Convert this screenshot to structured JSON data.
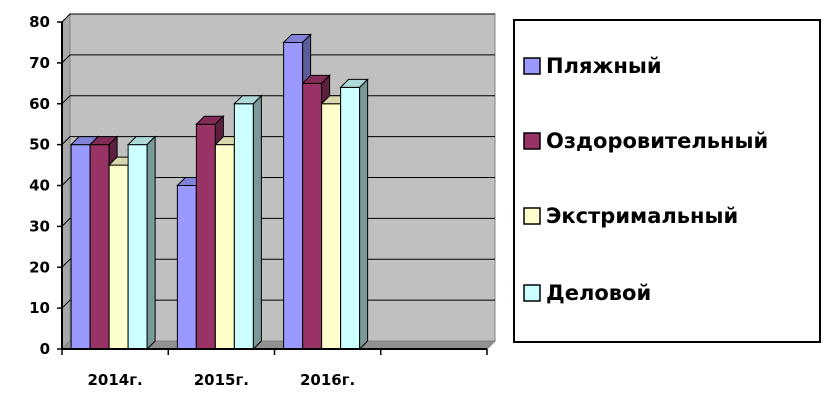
{
  "chart_data": {
    "type": "bar",
    "title": "",
    "xlabel": "",
    "ylabel": "",
    "categories": [
      "2014г.",
      "2015г.",
      "2016г.",
      ""
    ],
    "series": [
      {
        "name": "Пляжный",
        "values": [
          50,
          40,
          75,
          null
        ]
      },
      {
        "name": "Оздоровительный",
        "values": [
          50,
          55,
          65,
          null
        ]
      },
      {
        "name": "Экстримальный",
        "values": [
          45,
          50,
          60,
          null
        ]
      },
      {
        "name": "Деловой",
        "values": [
          50,
          60,
          64,
          null
        ]
      }
    ],
    "ylim": [
      0,
      80
    ],
    "y_ticks": [
      "0",
      "10",
      "20",
      "30",
      "40",
      "50",
      "60",
      "70",
      "80"
    ],
    "grid": true,
    "legend_position": "right",
    "colors": {
      "series": [
        "#9999ff",
        "#993366",
        "#ffffcc",
        "#ccffff"
      ],
      "plot_background": "#c0c0c0",
      "gridline": "#000000"
    }
  }
}
